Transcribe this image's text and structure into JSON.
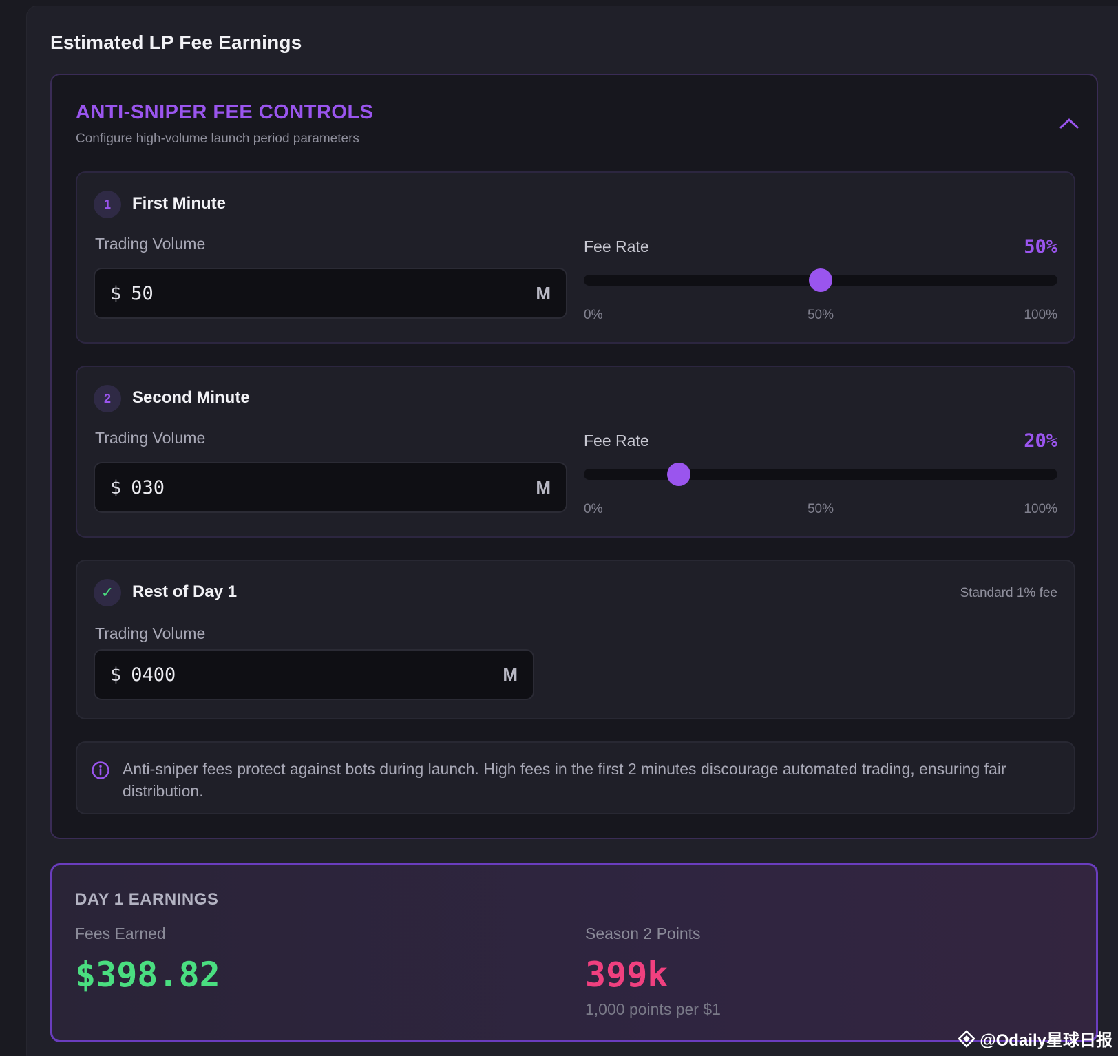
{
  "page": {
    "title": "Estimated LP Fee Earnings"
  },
  "controls": {
    "title": "ANTI-SNIPER FEE CONTROLS",
    "subtitle": "Configure high-volume launch period parameters",
    "collapse_icon": "chevron-up-icon"
  },
  "sections": [
    {
      "badge": "1",
      "title": "First Minute",
      "volume_label": "Trading Volume",
      "currency": "$",
      "volume_value": "50",
      "unit": "M",
      "fee_label": "Fee Rate",
      "fee_value": "50%",
      "fee_fraction": 0.5,
      "ticks": [
        "0%",
        "50%",
        "100%"
      ]
    },
    {
      "badge": "2",
      "title": "Second Minute",
      "volume_label": "Trading Volume",
      "currency": "$",
      "volume_value": "030",
      "unit": "M",
      "fee_label": "Fee Rate",
      "fee_value": "20%",
      "fee_fraction": 0.2,
      "ticks": [
        "0%",
        "50%",
        "100%"
      ]
    },
    {
      "badge_icon": "checkmark-icon",
      "title": "Rest of Day 1",
      "note": "Standard 1% fee",
      "volume_label": "Trading Volume",
      "currency": "$",
      "volume_value": "0400",
      "unit": "M"
    }
  ],
  "info": {
    "icon": "info-icon",
    "text": "Anti-sniper fees protect against bots during launch. High fees in the first 2 minutes discourage automated trading, ensuring fair distribution."
  },
  "earnings": {
    "title": "DAY 1 EARNINGS",
    "fees_label": "Fees Earned",
    "fees_value": "$398.82",
    "points_label": "Season 2 Points",
    "points_value": "399k",
    "points_note": "1,000 points per $1"
  },
  "watermark": {
    "text": "@Odaily星球日报"
  },
  "colors": {
    "accent": "#9a55ee",
    "fees": "#4ade80",
    "points": "#f0407f",
    "earnings_border": "#6a3dbe"
  }
}
